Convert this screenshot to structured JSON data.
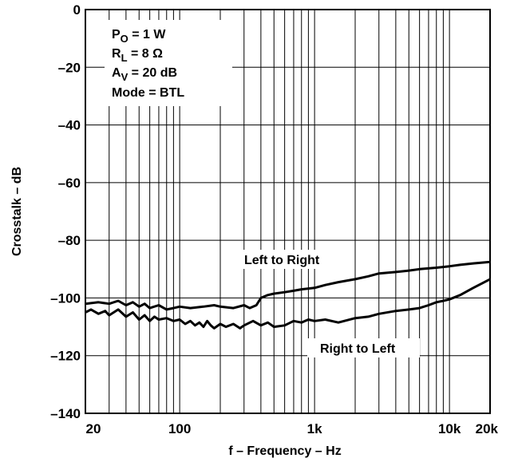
{
  "chart_data": {
    "type": "line",
    "xscale": "log",
    "xlim": [
      20,
      20000
    ],
    "ylim": [
      -140,
      0
    ],
    "grid": true,
    "xlabel": "f – Frequency – Hz",
    "ylabel": "Crosstalk – dB",
    "x_ticks": [
      {
        "value": 20,
        "label": "20"
      },
      {
        "value": 100,
        "label": "100"
      },
      {
        "value": 1000,
        "label": "1k"
      },
      {
        "value": 10000,
        "label": "10k"
      },
      {
        "value": 20000,
        "label": "20k"
      }
    ],
    "y_ticks": [
      {
        "value": 0,
        "label": "0"
      },
      {
        "value": -20,
        "label": "–20"
      },
      {
        "value": -40,
        "label": "–40"
      },
      {
        "value": -60,
        "label": "–60"
      },
      {
        "value": -80,
        "label": "–80"
      },
      {
        "value": -100,
        "label": "–100"
      },
      {
        "value": -120,
        "label": "–120"
      },
      {
        "value": -140,
        "label": "–140"
      }
    ],
    "conditions": [
      {
        "main": "P",
        "sub": "O",
        "rest": " = 1 W"
      },
      {
        "main": "R",
        "sub": "L",
        "rest": " = 8 Ω"
      },
      {
        "main": "A",
        "sub": "V",
        "rest": " = 20 dB"
      },
      {
        "main": "Mode = BTL",
        "sub": "",
        "rest": ""
      }
    ],
    "series": [
      {
        "name": "Left to Right",
        "x": [
          20,
          25,
          30,
          35,
          40,
          45,
          50,
          55,
          60,
          70,
          80,
          90,
          100,
          120,
          150,
          180,
          200,
          250,
          300,
          330,
          370,
          400,
          450,
          500,
          600,
          700,
          800,
          1000,
          1200,
          1500,
          2000,
          2500,
          3000,
          4000,
          5000,
          6000,
          8000,
          10000,
          12000,
          15000,
          20000
        ],
        "y": [
          -102,
          -101.5,
          -102,
          -101,
          -102.5,
          -101.5,
          -103,
          -102,
          -103.5,
          -102.5,
          -104,
          -103.5,
          -103,
          -103.5,
          -103,
          -102.5,
          -103,
          -103.5,
          -102.5,
          -103.5,
          -102.5,
          -100,
          -99,
          -98.5,
          -98,
          -97.5,
          -97,
          -96.5,
          -95.5,
          -94.5,
          -93.5,
          -92.5,
          -91.5,
          -91,
          -90.5,
          -90,
          -89.5,
          -89,
          -88.5,
          -88,
          -87.5
        ]
      },
      {
        "name": "Right to Left",
        "x": [
          20,
          22,
          25,
          28,
          30,
          35,
          40,
          45,
          50,
          55,
          60,
          65,
          70,
          80,
          90,
          100,
          110,
          120,
          130,
          140,
          150,
          160,
          170,
          180,
          200,
          220,
          250,
          280,
          300,
          350,
          400,
          450,
          500,
          600,
          700,
          800,
          900,
          1000,
          1200,
          1500,
          2000,
          2500,
          3000,
          4000,
          5000,
          6000,
          7000,
          8000,
          9000,
          10000,
          12000,
          15000,
          20000
        ],
        "y": [
          -105,
          -104,
          -105.5,
          -104.5,
          -106,
          -104,
          -106.5,
          -105,
          -107.5,
          -106,
          -108,
          -106.5,
          -107.5,
          -107,
          -108,
          -107.5,
          -109,
          -108,
          -109.5,
          -108.5,
          -110,
          -108,
          -109.5,
          -110.5,
          -109,
          -110,
          -109,
          -110.5,
          -109.5,
          -108,
          -109.5,
          -108.5,
          -110,
          -109.5,
          -108,
          -108.5,
          -107.5,
          -108,
          -107.5,
          -108.5,
          -107,
          -106.5,
          -105.5,
          -104.5,
          -104,
          -103.5,
          -102.5,
          -101.5,
          -101,
          -100.5,
          -99,
          -96.5,
          -93.5
        ]
      }
    ]
  }
}
